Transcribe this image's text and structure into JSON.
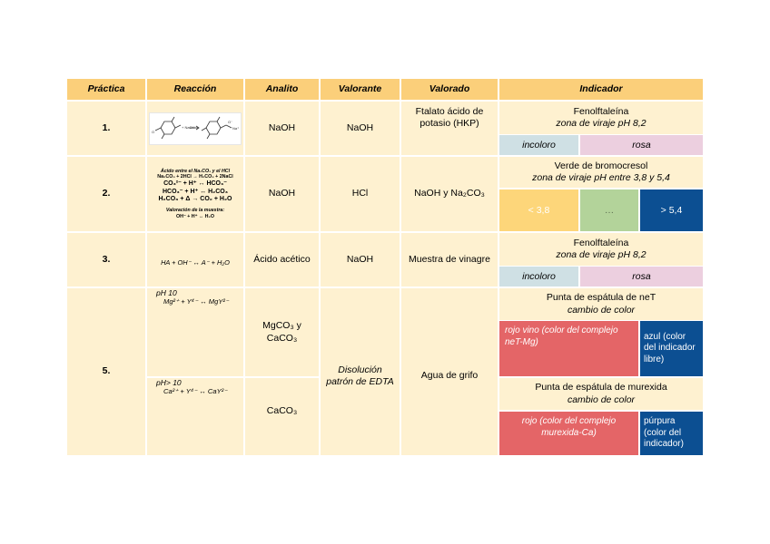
{
  "headers": {
    "practica": "Práctica",
    "reaccion": "Reacción",
    "analito": "Analito",
    "valorante": "Valorante",
    "valorado": "Valorado",
    "indicador": "Indicador"
  },
  "rows": {
    "r1": {
      "practica": "1.",
      "analito": "NaOH",
      "valorante": "NaOH",
      "valorado": "Ftalato ácido de potasio (HKP)",
      "indicator_name": "Fenolftaleína",
      "indicator_range": "zona de viraje pH 8,2",
      "swatch_left": "incoloro",
      "swatch_right": "rosa"
    },
    "r2": {
      "practica": "2.",
      "analito": "NaOH",
      "valorante": "HCl",
      "valorado": "NaOH y Na₂CO₃",
      "indicator_name": "Verde de bromocresol",
      "indicator_range": "zona de viraje pH entre 3,8 y 5,4",
      "swatch_1": "< 3,8",
      "swatch_2": "…",
      "swatch_3": "> 5,4",
      "eq_title": "Ácido entre el Na₂CO₃ y el HCl",
      "eq_1": "Na₂CO₃ + 2HCl → H₂CO₃ + 2NaCl",
      "eq_2": "CO₃²⁻ + H⁺ ↔ HCO₃⁻",
      "eq_3": "HCO₃⁻ + H⁺ ↔ H₂CO₃",
      "eq_4": "H₂CO₃ + Δ → CO₂ + H₂O",
      "eq_label": "Valoración de la muestra:",
      "eq_5": "OH⁻ + H⁺ ↔ H₂O"
    },
    "r3": {
      "practica": "3.",
      "reaction": "HA + OH⁻ ↔ A⁻ + H₂O",
      "analito": "Ácido acético",
      "valorante": "NaOH",
      "valorado": "Muestra de vinagre",
      "indicator_name": "Fenolftaleína",
      "indicator_range": "zona de viraje pH 8,2",
      "swatch_left": "incoloro",
      "swatch_right": "rosa"
    },
    "r5": {
      "practica": "5.",
      "cond_a": "pH 10",
      "reaction_a": "Mg²⁺ + Y⁴⁻ ↔ MgY²⁻",
      "analito_a": "MgCO₃ y CaCO₃",
      "cond_b": "pH> 10",
      "reaction_b": "Ca²⁺ + Y⁴⁻ ↔ CaY²⁻",
      "analito_b": "CaCO₃",
      "valorante": "Disolución patrón de EDTA",
      "valorado": "Agua de grifo",
      "ind_a_name": "Punta de espátula de neT",
      "ind_a_sub": "cambio de color",
      "ind_a_left": "rojo vino (color del complejo neT-Mg)",
      "ind_a_right": "azul (color del indicador libre)",
      "ind_b_name": "Punta de espátula de murexida",
      "ind_b_sub": "cambio de color",
      "ind_b_left": "rojo (color del complejo murexida-Ca)",
      "ind_b_right": "púrpura (color del indicador)"
    }
  },
  "colors": {
    "header": "#fbcf7a",
    "row": "#fef1d0",
    "incoloro": "#cfe0e4",
    "rosa": "#eccfdf",
    "yellow": "#fdd67a",
    "green": "#b3d39a",
    "blue": "#0c4f92",
    "red": "#e46567"
  }
}
